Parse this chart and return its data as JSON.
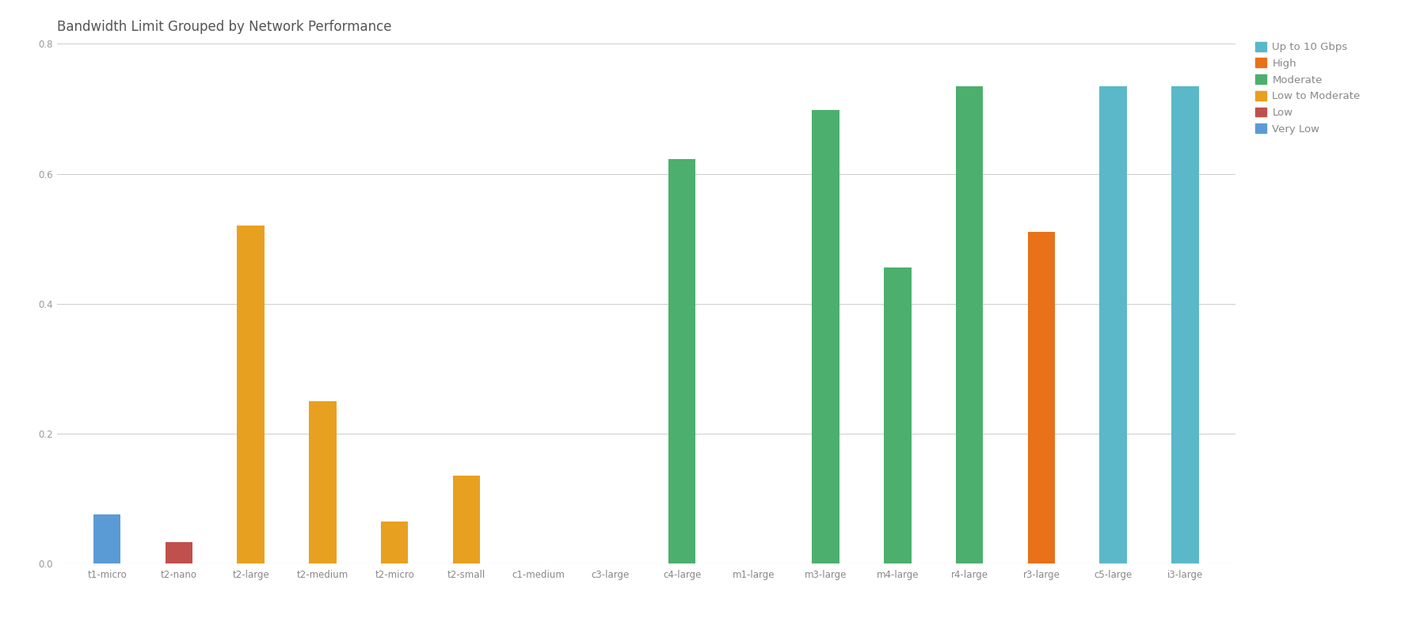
{
  "title": "Bandwidth Limit Grouped by Network Performance",
  "categories": [
    "t1-micro",
    "t2-nano",
    "t2-large",
    "t2-medium",
    "t2-micro",
    "t2-small",
    "c1-medium",
    "c3-large",
    "c4-large",
    "m1-large",
    "m3-large",
    "m4-large",
    "r4-large",
    "r3-large",
    "c5-large",
    "i3-large"
  ],
  "values": [
    0.075,
    0.033,
    0.52,
    0.25,
    0.065,
    0.135,
    0.0,
    0.0,
    0.622,
    0.0,
    0.698,
    0.455,
    0.735,
    0.51,
    0.735,
    0.735
  ],
  "colors": [
    "#5B9BD5",
    "#C0504D",
    "#E8A020",
    "#E8A020",
    "#E8A020",
    "#E8A020",
    "#E8A020",
    "#E8A020",
    "#4CAF6E",
    "#4CAF6E",
    "#4CAF6E",
    "#4CAF6E",
    "#4CAF6E",
    "#E8711A",
    "#5BB8C8",
    "#5BB8C8"
  ],
  "legend": [
    {
      "label": "Up to 10 Gbps",
      "color": "#5BB8C8"
    },
    {
      "label": "High",
      "color": "#E8711A"
    },
    {
      "label": "Moderate",
      "color": "#4CAF6E"
    },
    {
      "label": "Low to Moderate",
      "color": "#E8A020"
    },
    {
      "label": "Low",
      "color": "#C0504D"
    },
    {
      "label": "Very Low",
      "color": "#5B9BD5"
    }
  ],
  "ylim": [
    0,
    0.8
  ],
  "yticks": [
    0,
    0.2,
    0.4,
    0.6,
    0.8
  ],
  "background_color": "#FFFFFF",
  "grid_color": "#CCCCCC",
  "title_fontsize": 12,
  "tick_fontsize": 8.5,
  "legend_fontsize": 9.5
}
